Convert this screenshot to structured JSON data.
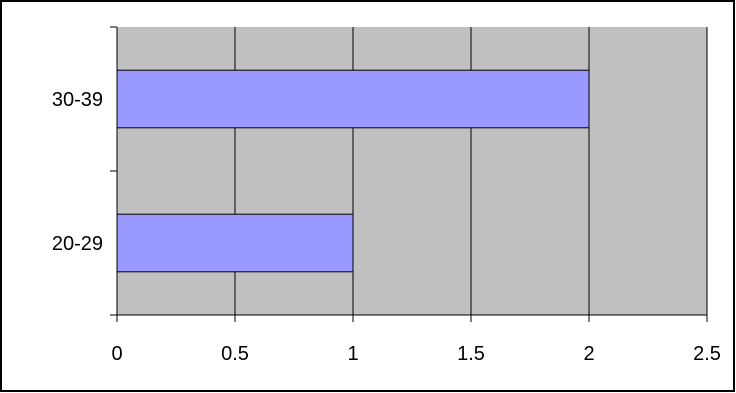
{
  "chart_data": {
    "type": "bar",
    "orientation": "horizontal",
    "categories": [
      "20-29",
      "30-39"
    ],
    "values": [
      1,
      2
    ],
    "title": "",
    "xlabel": "",
    "ylabel": "",
    "xlim": [
      0,
      2.5
    ],
    "x_ticks": [
      "0",
      "0.5",
      "1",
      "1.5",
      "2",
      "2.5"
    ],
    "grid": true,
    "legend": "none",
    "colors": {
      "bar_fill": "#9999FF",
      "bar_stroke": "#000000",
      "plot_background": "#C0C0C0",
      "gridline": "#000000",
      "frame": "#000000"
    }
  }
}
